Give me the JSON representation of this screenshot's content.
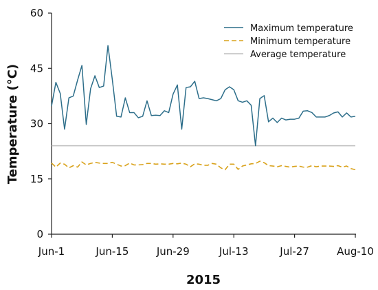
{
  "chart_data": {
    "type": "line",
    "title": "",
    "xlabel": "2015",
    "ylabel": "Temperature (°C)",
    "ylim": [
      0,
      60
    ],
    "yticks": [
      0,
      15,
      30,
      45,
      60
    ],
    "xticks": [
      {
        "day": 0,
        "label": "Jun-1"
      },
      {
        "day": 14,
        "label": "Jun-15"
      },
      {
        "day": 28,
        "label": "Jun-29"
      },
      {
        "day": 42,
        "label": "Jul-13"
      },
      {
        "day": 56,
        "label": "Jul-27"
      },
      {
        "day": 70,
        "label": "Aug-10"
      }
    ],
    "grid": false,
    "legend_position": "top-right",
    "x": [
      "Jun-1",
      "Jun-2",
      "Jun-3",
      "Jun-4",
      "Jun-5",
      "Jun-6",
      "Jun-7",
      "Jun-8",
      "Jun-9",
      "Jun-10",
      "Jun-11",
      "Jun-12",
      "Jun-13",
      "Jun-14",
      "Jun-15",
      "Jun-16",
      "Jun-17",
      "Jun-18",
      "Jun-19",
      "Jun-20",
      "Jun-21",
      "Jun-22",
      "Jun-23",
      "Jun-24",
      "Jun-25",
      "Jun-26",
      "Jun-27",
      "Jun-28",
      "Jun-29",
      "Jun-30",
      "Jul-1",
      "Jul-2",
      "Jul-3",
      "Jul-4",
      "Jul-5",
      "Jul-6",
      "Jul-7",
      "Jul-8",
      "Jul-9",
      "Jul-10",
      "Jul-11",
      "Jul-12",
      "Jul-13",
      "Jul-14",
      "Jul-15",
      "Jul-16",
      "Jul-17",
      "Jul-18",
      "Jul-19",
      "Jul-20",
      "Jul-21",
      "Jul-22",
      "Jul-23",
      "Jul-24",
      "Jul-25",
      "Jul-26",
      "Jul-27",
      "Jul-28",
      "Jul-29",
      "Jul-30",
      "Jul-31",
      "Aug-1",
      "Aug-2",
      "Aug-3",
      "Aug-4",
      "Aug-5",
      "Aug-6",
      "Aug-7",
      "Aug-8",
      "Aug-9",
      "Aug-10"
    ],
    "series": [
      {
        "name": "Maximum temperature",
        "color": "#2d6e8a",
        "style": "solid",
        "values": [
          34.8,
          41.2,
          38.2,
          28.5,
          37.0,
          37.5,
          41.8,
          45.8,
          29.8,
          39.5,
          43.0,
          39.8,
          40.2,
          51.2,
          42.0,
          32.0,
          31.8,
          37.0,
          33.0,
          33.0,
          31.6,
          32.0,
          36.2,
          32.2,
          32.3,
          32.2,
          33.5,
          33.0,
          38.0,
          40.5,
          28.5,
          39.8,
          40.0,
          41.5,
          36.8,
          37.0,
          36.8,
          36.5,
          36.2,
          36.8,
          39.2,
          40.0,
          39.2,
          36.2,
          35.8,
          36.2,
          35.0,
          24.0,
          36.8,
          37.6,
          30.5,
          31.5,
          30.3,
          31.5,
          31.0,
          31.2,
          31.2,
          31.5,
          33.4,
          33.5,
          33.0,
          31.8,
          31.8,
          31.8,
          32.2,
          32.9,
          33.2,
          31.8,
          32.9,
          31.8,
          32.0
        ]
      },
      {
        "name": "Minimum temperature",
        "color": "#d9a21b",
        "style": "dashed",
        "values": [
          19.3,
          18.2,
          19.3,
          19.0,
          18.0,
          18.6,
          18.2,
          19.6,
          18.8,
          19.2,
          19.5,
          19.3,
          19.2,
          19.2,
          19.5,
          19.0,
          18.5,
          18.6,
          19.3,
          18.8,
          18.8,
          18.9,
          19.2,
          19.2,
          19.0,
          19.1,
          19.0,
          19.0,
          19.2,
          19.1,
          19.3,
          19.0,
          18.3,
          19.1,
          19.0,
          18.7,
          18.7,
          19.2,
          19.0,
          18.0,
          17.5,
          19.0,
          19.0,
          17.6,
          18.5,
          18.8,
          19.1,
          19.2,
          19.8,
          19.4,
          18.6,
          18.5,
          18.3,
          18.6,
          18.4,
          18.2,
          18.4,
          18.5,
          18.2,
          18.2,
          18.6,
          18.3,
          18.5,
          18.5,
          18.5,
          18.4,
          18.6,
          18.2,
          18.5,
          17.8,
          17.5
        ]
      },
      {
        "name": "Average temperature",
        "color": "#bdbdbd",
        "style": "solid",
        "values": [
          24.0,
          24.0,
          24.0,
          24.0,
          24.0,
          24.0,
          24.0,
          24.0,
          24.0,
          24.0,
          24.0,
          24.0,
          24.0,
          24.0,
          24.0,
          24.0,
          24.0,
          24.0,
          24.0,
          24.0,
          24.0,
          24.0,
          24.0,
          24.0,
          24.0,
          24.0,
          24.0,
          24.0,
          24.0,
          24.0,
          24.0,
          24.0,
          24.0,
          24.0,
          24.0,
          24.0,
          24.0,
          24.0,
          24.0,
          24.0,
          24.0,
          24.0,
          24.0,
          24.0,
          24.0,
          24.0,
          24.0,
          24.0,
          24.0,
          24.0,
          24.0,
          24.0,
          24.0,
          24.0,
          24.0,
          24.0,
          24.0,
          24.0,
          24.0,
          24.0,
          24.0,
          24.0,
          24.0,
          24.0,
          24.0,
          24.0,
          24.0,
          24.0,
          24.0,
          24.0,
          24.0
        ]
      }
    ]
  }
}
